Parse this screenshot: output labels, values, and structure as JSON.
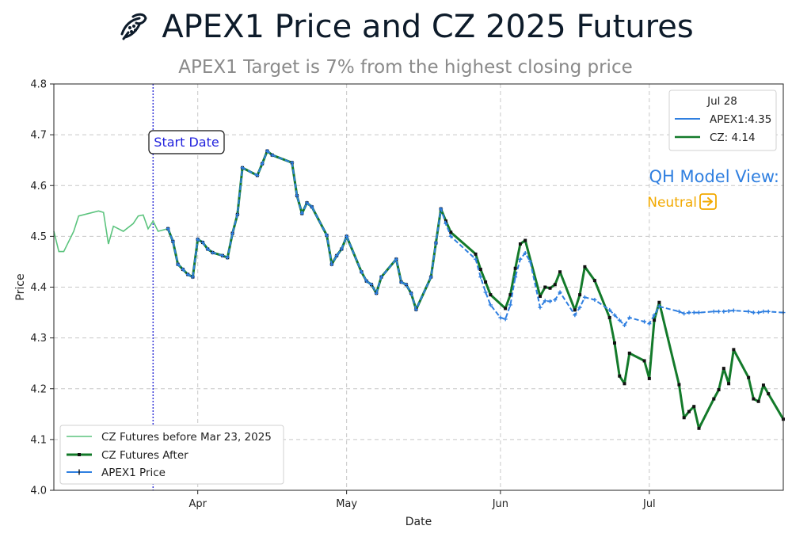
{
  "header": {
    "title": "APEX1 Price and CZ 2025 Futures",
    "subtitle": "APEX1 Target is 7% from the highest closing price",
    "logo_icon": "corn-leaf-icon"
  },
  "colors": {
    "cz_before": "#5cc47e",
    "cz_after": "#137a2a",
    "apex": "#2f7fe0",
    "start_line": "#3a3ad8",
    "qh_title": "#2f7fe0",
    "qh_value": "#f2a900"
  },
  "annotations": {
    "start_date_label": "Start Date",
    "start_date_x": "2025-03-23",
    "qh_title": "QH Model View:",
    "qh_value": "Neutral",
    "qh_icon": "arrow-right-box-icon"
  },
  "chart_data": {
    "type": "line",
    "xlabel": "Date",
    "ylabel": "Price",
    "ylim": [
      4.0,
      4.8
    ],
    "yticks": [
      "4.0",
      "4.1",
      "4.2",
      "4.3",
      "4.4",
      "4.5",
      "4.6",
      "4.7",
      "4.8"
    ],
    "xlim": [
      "2025-03-03",
      "2025-07-28"
    ],
    "xticks": [
      {
        "label": "Apr",
        "date": "2025-04-01"
      },
      {
        "label": "May",
        "date": "2025-05-01"
      },
      {
        "label": "Jun",
        "date": "2025-06-01"
      },
      {
        "label": "Jul",
        "date": "2025-07-01"
      }
    ],
    "grid": true,
    "legend": {
      "placement": "lower-left",
      "entries": [
        "CZ Futures before Mar 23, 2025",
        "CZ Futures After",
        "APEX1 Price"
      ]
    },
    "info_box": {
      "placement": "top-right",
      "title": "Jul 28",
      "entries": [
        "APEX1:4.35",
        "CZ: 4.14"
      ]
    },
    "series": [
      {
        "name": "CZ Futures before Mar 23, 2025",
        "style": "thin",
        "points": [
          [
            "2025-03-03",
            4.51
          ],
          [
            "2025-03-04",
            4.47
          ],
          [
            "2025-03-05",
            4.47
          ],
          [
            "2025-03-07",
            4.51
          ],
          [
            "2025-03-08",
            4.54
          ],
          [
            "2025-03-12",
            4.55
          ],
          [
            "2025-03-13",
            4.547
          ],
          [
            "2025-03-14",
            4.485
          ],
          [
            "2025-03-15",
            4.52
          ],
          [
            "2025-03-17",
            4.51
          ],
          [
            "2025-03-19",
            4.525
          ],
          [
            "2025-03-20",
            4.54
          ],
          [
            "2025-03-21",
            4.542
          ],
          [
            "2025-03-22",
            4.515
          ],
          [
            "2025-03-23",
            4.53
          ],
          [
            "2025-03-24",
            4.51
          ],
          [
            "2025-03-26",
            4.515
          ]
        ]
      },
      {
        "name": "CZ Futures After",
        "style": "thick-square",
        "points": [
          [
            "2025-03-26",
            4.515
          ],
          [
            "2025-03-27",
            4.49
          ],
          [
            "2025-03-28",
            4.445
          ],
          [
            "2025-03-29",
            4.435
          ],
          [
            "2025-03-30",
            4.425
          ],
          [
            "2025-03-31",
            4.42
          ],
          [
            "2025-04-01",
            4.494
          ],
          [
            "2025-04-02",
            4.488
          ],
          [
            "2025-04-03",
            4.475
          ],
          [
            "2025-04-04",
            4.468
          ],
          [
            "2025-04-06",
            4.462
          ],
          [
            "2025-04-07",
            4.458
          ],
          [
            "2025-04-08",
            4.506
          ],
          [
            "2025-04-09",
            4.543
          ],
          [
            "2025-04-10",
            4.635
          ],
          [
            "2025-04-13",
            4.62
          ],
          [
            "2025-04-14",
            4.643
          ],
          [
            "2025-04-15",
            4.668
          ],
          [
            "2025-04-16",
            4.66
          ],
          [
            "2025-04-20",
            4.645
          ],
          [
            "2025-04-21",
            4.58
          ],
          [
            "2025-04-22",
            4.545
          ],
          [
            "2025-04-23",
            4.566
          ],
          [
            "2025-04-24",
            4.558
          ],
          [
            "2025-04-27",
            4.502
          ],
          [
            "2025-04-28",
            4.445
          ],
          [
            "2025-04-29",
            4.462
          ],
          [
            "2025-04-30",
            4.475
          ],
          [
            "2025-05-01",
            4.5
          ],
          [
            "2025-05-04",
            4.43
          ],
          [
            "2025-05-05",
            4.412
          ],
          [
            "2025-05-06",
            4.405
          ],
          [
            "2025-05-07",
            4.388
          ],
          [
            "2025-05-08",
            4.42
          ],
          [
            "2025-05-11",
            4.455
          ],
          [
            "2025-05-12",
            4.41
          ],
          [
            "2025-05-13",
            4.405
          ],
          [
            "2025-05-14",
            4.388
          ],
          [
            "2025-05-15",
            4.356
          ],
          [
            "2025-05-18",
            4.42
          ],
          [
            "2025-05-19",
            4.487
          ],
          [
            "2025-05-20",
            4.554
          ],
          [
            "2025-05-21",
            4.53
          ],
          [
            "2025-05-22",
            4.508
          ],
          [
            "2025-05-27",
            4.465
          ],
          [
            "2025-05-28",
            4.435
          ],
          [
            "2025-05-29",
            4.41
          ],
          [
            "2025-05-30",
            4.385
          ],
          [
            "2025-06-02",
            4.358
          ],
          [
            "2025-06-03",
            4.385
          ],
          [
            "2025-06-04",
            4.437
          ],
          [
            "2025-06-05",
            4.485
          ],
          [
            "2025-06-06",
            4.492
          ],
          [
            "2025-06-09",
            4.382
          ],
          [
            "2025-06-10",
            4.4
          ],
          [
            "2025-06-11",
            4.398
          ],
          [
            "2025-06-12",
            4.405
          ],
          [
            "2025-06-13",
            4.43
          ],
          [
            "2025-06-16",
            4.355
          ],
          [
            "2025-06-17",
            4.385
          ],
          [
            "2025-06-18",
            4.44
          ],
          [
            "2025-06-20",
            4.413
          ],
          [
            "2025-06-23",
            4.34
          ],
          [
            "2025-06-24",
            4.29
          ],
          [
            "2025-06-25",
            4.225
          ],
          [
            "2025-06-26",
            4.21
          ],
          [
            "2025-06-27",
            4.27
          ],
          [
            "2025-06-30",
            4.255
          ],
          [
            "2025-07-01",
            4.22
          ],
          [
            "2025-07-02",
            4.335
          ],
          [
            "2025-07-03",
            4.37
          ],
          [
            "2025-07-07",
            4.208
          ],
          [
            "2025-07-08",
            4.143
          ],
          [
            "2025-07-09",
            4.155
          ],
          [
            "2025-07-10",
            4.165
          ],
          [
            "2025-07-11",
            4.122
          ],
          [
            "2025-07-14",
            4.18
          ],
          [
            "2025-07-15",
            4.198
          ],
          [
            "2025-07-16",
            4.24
          ],
          [
            "2025-07-17",
            4.21
          ],
          [
            "2025-07-18",
            4.277
          ],
          [
            "2025-07-21",
            4.222
          ],
          [
            "2025-07-22",
            4.18
          ],
          [
            "2025-07-23",
            4.175
          ],
          [
            "2025-07-24",
            4.207
          ],
          [
            "2025-07-25",
            4.19
          ],
          [
            "2025-07-28",
            4.14
          ]
        ]
      },
      {
        "name": "APEX1 Price",
        "style": "dashed-plus",
        "points": [
          [
            "2025-03-26",
            4.515
          ],
          [
            "2025-03-27",
            4.49
          ],
          [
            "2025-03-28",
            4.445
          ],
          [
            "2025-03-29",
            4.435
          ],
          [
            "2025-03-30",
            4.425
          ],
          [
            "2025-03-31",
            4.42
          ],
          [
            "2025-04-01",
            4.494
          ],
          [
            "2025-04-02",
            4.488
          ],
          [
            "2025-04-03",
            4.475
          ],
          [
            "2025-04-04",
            4.468
          ],
          [
            "2025-04-06",
            4.462
          ],
          [
            "2025-04-07",
            4.458
          ],
          [
            "2025-04-08",
            4.506
          ],
          [
            "2025-04-09",
            4.543
          ],
          [
            "2025-04-10",
            4.635
          ],
          [
            "2025-04-13",
            4.62
          ],
          [
            "2025-04-14",
            4.643
          ],
          [
            "2025-04-15",
            4.668
          ],
          [
            "2025-04-16",
            4.66
          ],
          [
            "2025-04-20",
            4.645
          ],
          [
            "2025-04-21",
            4.58
          ],
          [
            "2025-04-22",
            4.545
          ],
          [
            "2025-04-23",
            4.566
          ],
          [
            "2025-04-24",
            4.558
          ],
          [
            "2025-04-27",
            4.502
          ],
          [
            "2025-04-28",
            4.445
          ],
          [
            "2025-04-29",
            4.462
          ],
          [
            "2025-04-30",
            4.475
          ],
          [
            "2025-05-01",
            4.5
          ],
          [
            "2025-05-04",
            4.43
          ],
          [
            "2025-05-05",
            4.412
          ],
          [
            "2025-05-06",
            4.405
          ],
          [
            "2025-05-07",
            4.388
          ],
          [
            "2025-05-08",
            4.42
          ],
          [
            "2025-05-11",
            4.455
          ],
          [
            "2025-05-12",
            4.41
          ],
          [
            "2025-05-13",
            4.405
          ],
          [
            "2025-05-14",
            4.388
          ],
          [
            "2025-05-15",
            4.356
          ],
          [
            "2025-05-18",
            4.42
          ],
          [
            "2025-05-19",
            4.487
          ],
          [
            "2025-05-20",
            4.554
          ],
          [
            "2025-05-21",
            4.525
          ],
          [
            "2025-05-22",
            4.5
          ],
          [
            "2025-05-27",
            4.455
          ],
          [
            "2025-05-28",
            4.42
          ],
          [
            "2025-05-29",
            4.39
          ],
          [
            "2025-05-30",
            4.365
          ],
          [
            "2025-06-01",
            4.34
          ],
          [
            "2025-06-02",
            4.337
          ],
          [
            "2025-06-03",
            4.365
          ],
          [
            "2025-06-04",
            4.42
          ],
          [
            "2025-06-05",
            4.455
          ],
          [
            "2025-06-06",
            4.467
          ],
          [
            "2025-06-07",
            4.45
          ],
          [
            "2025-06-09",
            4.36
          ],
          [
            "2025-06-10",
            4.373
          ],
          [
            "2025-06-11",
            4.372
          ],
          [
            "2025-06-12",
            4.375
          ],
          [
            "2025-06-13",
            4.39
          ],
          [
            "2025-06-16",
            4.345
          ],
          [
            "2025-06-17",
            4.36
          ],
          [
            "2025-06-18",
            4.38
          ],
          [
            "2025-06-20",
            4.375
          ],
          [
            "2025-06-23",
            4.355
          ],
          [
            "2025-06-24",
            4.345
          ],
          [
            "2025-06-25",
            4.335
          ],
          [
            "2025-06-26",
            4.325
          ],
          [
            "2025-06-27",
            4.34
          ],
          [
            "2025-06-30",
            4.332
          ],
          [
            "2025-07-01",
            4.328
          ],
          [
            "2025-07-02",
            4.345
          ],
          [
            "2025-07-03",
            4.362
          ],
          [
            "2025-07-07",
            4.352
          ],
          [
            "2025-07-08",
            4.348
          ],
          [
            "2025-07-09",
            4.35
          ],
          [
            "2025-07-10",
            4.35
          ],
          [
            "2025-07-11",
            4.35
          ],
          [
            "2025-07-14",
            4.352
          ],
          [
            "2025-07-15",
            4.352
          ],
          [
            "2025-07-16",
            4.352
          ],
          [
            "2025-07-17",
            4.353
          ],
          [
            "2025-07-18",
            4.354
          ],
          [
            "2025-07-21",
            4.352
          ],
          [
            "2025-07-22",
            4.35
          ],
          [
            "2025-07-23",
            4.35
          ],
          [
            "2025-07-24",
            4.352
          ],
          [
            "2025-07-25",
            4.352
          ],
          [
            "2025-07-28",
            4.35
          ]
        ]
      }
    ]
  }
}
